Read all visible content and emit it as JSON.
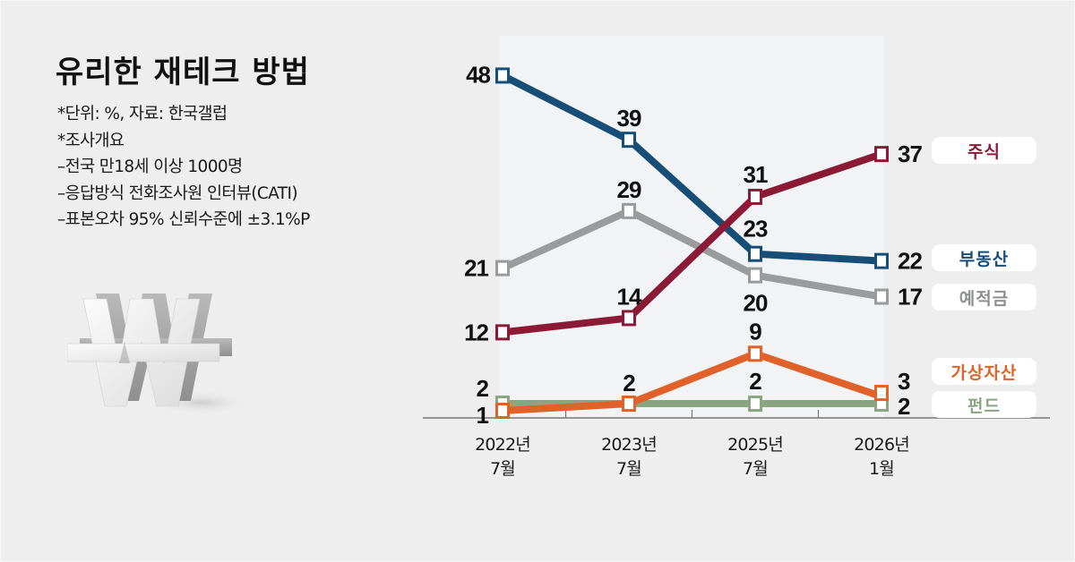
{
  "header": {
    "title": "유리한 재테크 방법",
    "notes": [
      "*단위: %, 자료: 한국갤럽",
      "*조사개요",
      "–전국 만18세 이상 1000명",
      "–응답방식 전화조사원 인터뷰(CATI)",
      "–표본오차 95% 신뢰수준에 ±3.1%P"
    ]
  },
  "decoration": {
    "icon": "won-currency-3d-icon"
  },
  "chart_data": {
    "type": "line",
    "title": "유리한 재테크 방법",
    "xlabel": "",
    "ylabel": "%",
    "ylim": [
      0,
      55
    ],
    "grid": false,
    "legend": "right",
    "categories": [
      [
        "2022년",
        "7월"
      ],
      [
        "2023년",
        "7월"
      ],
      [
        "2025년",
        "7월"
      ],
      [
        "2026년",
        "1월"
      ]
    ],
    "series": [
      {
        "name": "주식",
        "color": "#8b1a37",
        "values": [
          12,
          14,
          31,
          37
        ]
      },
      {
        "name": "부동산",
        "color": "#164e78",
        "values": [
          48,
          39,
          23,
          22
        ]
      },
      {
        "name": "예적금",
        "color": "#9a9b9d",
        "values": [
          21,
          29,
          20,
          17
        ]
      },
      {
        "name": "가상자산",
        "color": "#e0622a",
        "values": [
          1,
          2,
          9,
          3
        ]
      },
      {
        "name": "펀드",
        "color": "#8aa582",
        "values": [
          2,
          2,
          2,
          2
        ]
      }
    ]
  }
}
